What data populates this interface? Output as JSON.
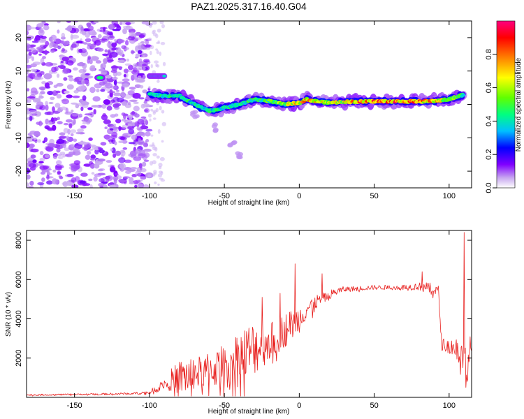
{
  "chart_data": [
    {
      "type": "heatmap",
      "title": "PAZ1.2025.317.16.40.G04",
      "xlabel": "Height of straight line (km)",
      "ylabel": "Frequency (Hz)",
      "xlim": [
        -182,
        115
      ],
      "ylim": [
        -25,
        25
      ],
      "xticks": [
        -150,
        -100,
        -50,
        0,
        50,
        100
      ],
      "yticks": [
        -20,
        -10,
        0,
        10,
        20
      ],
      "colorbar": {
        "label": "Normalized spectral amplitude",
        "range": [
          0,
          1
        ],
        "ticks": [
          "0.0",
          "0.2",
          "0.4",
          "0.6",
          "0.8"
        ],
        "colors": [
          "#ffffff",
          "#c8a8f0",
          "#8000ff",
          "#0000ff",
          "#00c0ff",
          "#00ff80",
          "#60ff00",
          "#ffff00",
          "#ff8000",
          "#ff0000",
          "#ff0080"
        ]
      },
      "features": {
        "noise_region_x": [
          -182,
          -100
        ],
        "main_track": [
          {
            "x": -100,
            "y": 3,
            "a": 0.45
          },
          {
            "x": -90,
            "y": 2.5,
            "a": 0.5
          },
          {
            "x": -80,
            "y": 2.5,
            "a": 0.45
          },
          {
            "x": -70,
            "y": 0,
            "a": 0.45
          },
          {
            "x": -60,
            "y": -2,
            "a": 0.5
          },
          {
            "x": -50,
            "y": -1,
            "a": 0.45
          },
          {
            "x": -40,
            "y": 0,
            "a": 0.45
          },
          {
            "x": -30,
            "y": 1.5,
            "a": 0.5
          },
          {
            "x": -20,
            "y": 1,
            "a": 0.55
          },
          {
            "x": -10,
            "y": 0,
            "a": 0.6
          },
          {
            "x": 0,
            "y": 0.5,
            "a": 0.75
          },
          {
            "x": 5,
            "y": 1.5,
            "a": 0.8
          },
          {
            "x": 10,
            "y": 1,
            "a": 0.8
          },
          {
            "x": 20,
            "y": 0.5,
            "a": 0.65
          },
          {
            "x": 30,
            "y": 0.8,
            "a": 0.7
          },
          {
            "x": 40,
            "y": 0.8,
            "a": 0.85
          },
          {
            "x": 50,
            "y": 0.9,
            "a": 0.9
          },
          {
            "x": 60,
            "y": 0.9,
            "a": 0.9
          },
          {
            "x": 70,
            "y": 0.9,
            "a": 0.85
          },
          {
            "x": 80,
            "y": 0.9,
            "a": 0.85
          },
          {
            "x": 90,
            "y": 1,
            "a": 0.75
          },
          {
            "x": 100,
            "y": 1.5,
            "a": 0.6
          },
          {
            "x": 110,
            "y": 3,
            "a": 0.5
          }
        ],
        "secondary_track": [
          {
            "x": -100,
            "y": 8.5,
            "a": 0.35
          },
          {
            "x": -95,
            "y": 8.5,
            "a": 0.4
          },
          {
            "x": -90,
            "y": 8.5,
            "a": 0.35
          }
        ],
        "isolated_blob": {
          "x": -133,
          "y": 8,
          "a": 0.45
        },
        "faint_branches": [
          {
            "x": -70,
            "y": -3
          },
          {
            "x": -55,
            "y": -7
          },
          {
            "x": -45,
            "y": -12
          },
          {
            "x": -40,
            "y": -15
          }
        ]
      }
    },
    {
      "type": "line",
      "xlabel": "Height of straight line (km)",
      "ylabel": "SNR (10 * v/v)",
      "xlim": [
        -182,
        115
      ],
      "ylim": [
        0,
        8500
      ],
      "xticks": [
        -150,
        -100,
        -50,
        0,
        50,
        100
      ],
      "yticks": [
        2000,
        4000,
        6000,
        8000
      ],
      "color": "#e8201e",
      "series": [
        {
          "name": "SNR",
          "x": [
            -182,
            -160,
            -140,
            -120,
            -110,
            -100,
            -95,
            -90,
            -85,
            -80,
            -75,
            -70,
            -65,
            -60,
            -55,
            -50,
            -45,
            -40,
            -35,
            -30,
            -25,
            -20,
            -15,
            -10,
            -5,
            0,
            5,
            10,
            15,
            20,
            25,
            30,
            40,
            50,
            60,
            70,
            80,
            85,
            90,
            93,
            95,
            100,
            105,
            108,
            110,
            112,
            115
          ],
          "mean": [
            120,
            140,
            160,
            180,
            200,
            250,
            450,
            700,
            900,
            1000,
            1100,
            1200,
            1300,
            1400,
            1500,
            1600,
            1800,
            2000,
            2200,
            2500,
            2700,
            2800,
            3100,
            3400,
            3700,
            4000,
            4500,
            4800,
            5000,
            5200,
            5400,
            5500,
            5550,
            5600,
            5600,
            5600,
            5650,
            5600,
            5500,
            5300,
            2700,
            2600,
            2500,
            2400,
            1500,
            1800,
            2500
          ],
          "jitter": [
            40,
            40,
            40,
            50,
            60,
            100,
            200,
            300,
            600,
            900,
            1000,
            900,
            800,
            900,
            1000,
            1100,
            1300,
            1500,
            1600,
            1400,
            1200,
            1000,
            900,
            900,
            800,
            700,
            500,
            400,
            300,
            250,
            200,
            150,
            120,
            120,
            120,
            150,
            200,
            250,
            300,
            400,
            300,
            400,
            600,
            1000,
            1500,
            1000,
            800
          ],
          "spikes": [
            {
              "x": -25,
              "y": 5100
            },
            {
              "x": -13,
              "y": 5300
            },
            {
              "x": -3,
              "y": 6800
            },
            {
              "x": 15,
              "y": 6300
            },
            {
              "x": 82,
              "y": 6400
            },
            {
              "x": 110,
              "y": 8400
            },
            {
              "x": 111,
              "y": 500
            }
          ]
        }
      ]
    }
  ]
}
